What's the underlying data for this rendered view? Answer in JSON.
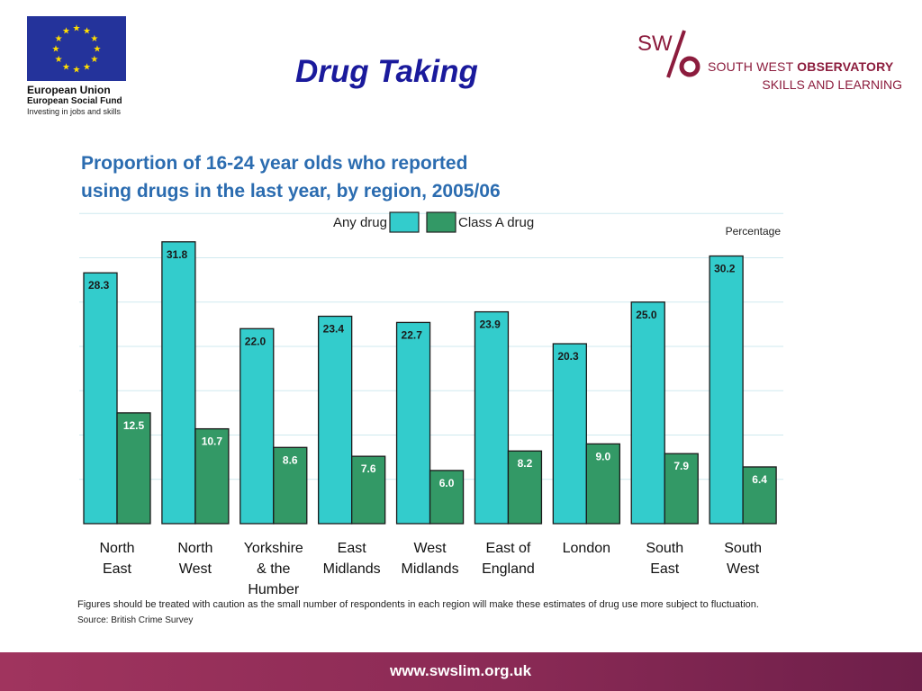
{
  "header": {
    "title": "Drug Taking",
    "eu_logo": {
      "line1": "European Union",
      "line2": "European Social Fund",
      "line3": "Investing in jobs and skills"
    },
    "sw_logo": {
      "mark": "SW",
      "line1_a": "SOUTH WEST ",
      "line1_b": "OBSERVATORY",
      "line2": "SKILLS AND LEARNING"
    }
  },
  "colors": {
    "any_drug": "#33cccc",
    "class_a": "#339966",
    "title_blue": "#2b6cb0",
    "slide_title": "#1a1a9c",
    "brand": "#8c1c3d",
    "eu_blue": "#24339b",
    "eu_star": "#ffdd00"
  },
  "chart_data": {
    "type": "bar",
    "title_lines": [
      "Proportion of 16-24 year olds who reported",
      "using drugs in the last year, by region, 2005/06"
    ],
    "unit_label": "Percentage",
    "categories": [
      [
        "North",
        "East"
      ],
      [
        "North",
        "West"
      ],
      [
        "Yorkshire",
        "& the",
        "Humber"
      ],
      [
        "East",
        "Midlands"
      ],
      [
        "West",
        "Midlands"
      ],
      [
        "East of",
        "England"
      ],
      [
        "London"
      ],
      [
        "South",
        "East"
      ],
      [
        "South",
        "West"
      ]
    ],
    "series": [
      {
        "name": "Any drug",
        "values": [
          28.3,
          31.8,
          22.0,
          23.4,
          22.7,
          23.9,
          20.3,
          25.0,
          30.2
        ],
        "labels": [
          "28.3",
          "31.8",
          "22.0",
          "23.4",
          "22.7",
          "23.9",
          "20.3",
          "25.0",
          "30.2"
        ]
      },
      {
        "name": "Class A drug",
        "values": [
          12.5,
          10.7,
          8.6,
          7.6,
          6.0,
          8.2,
          9.0,
          7.9,
          6.4
        ],
        "labels": [
          "12.5",
          "10.7",
          "8.6",
          "7.6",
          "6.0",
          "8.2",
          "9.0",
          "7.9",
          "6.4"
        ]
      }
    ],
    "ylim": [
      0,
      35
    ],
    "grid": true,
    "legend_position": "top-center"
  },
  "note": "Figures should be treated with caution as the small number of respondents in each region will make these estimates of drug use more subject to fluctuation.",
  "source": "Source: British Crime Survey",
  "footer": {
    "url": "www.swslim.org.uk"
  }
}
